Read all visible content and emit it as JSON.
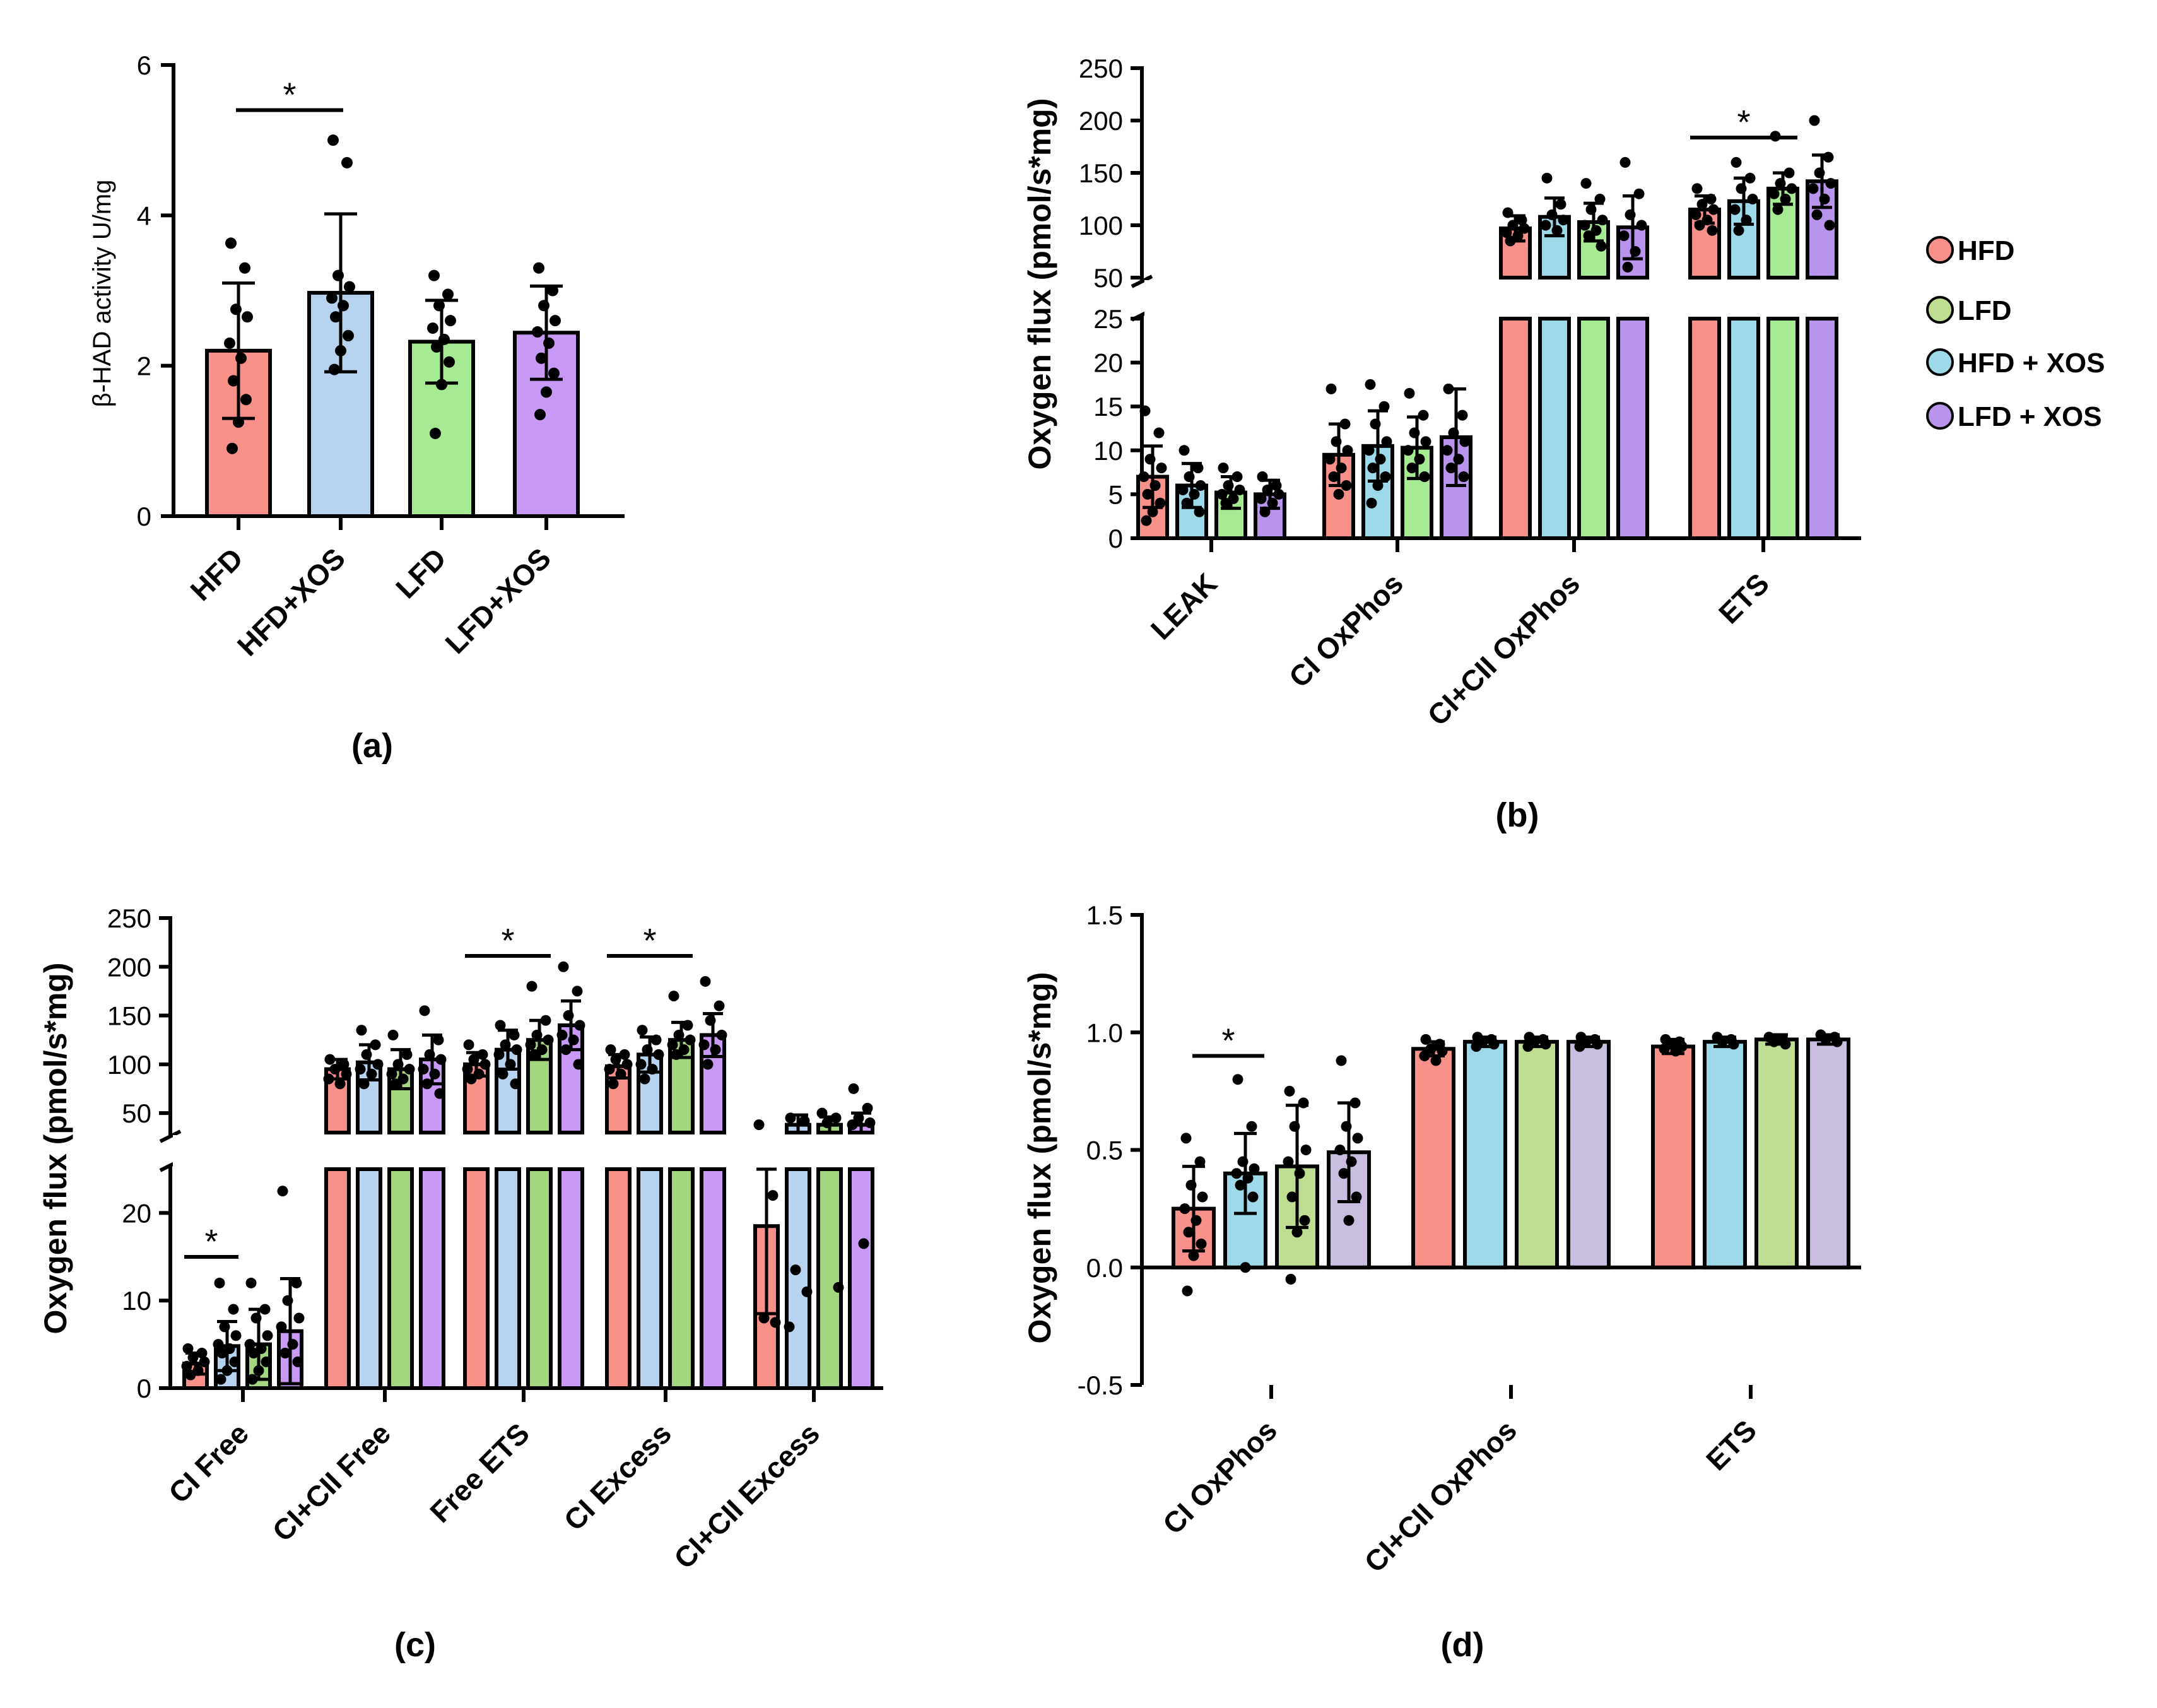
{
  "colors": {
    "hfd": "#F7918A",
    "lfd": "#A6EB93",
    "hfd_xos": "#B7D3EF",
    "lfd_xos": "#C89AF5",
    "hfd_xos_alt": "#9ED9EA",
    "lfd_xos_alt": "#B894EC",
    "lfd_d": "#BFDE94",
    "lfd_xos_d": "#C9BEDF",
    "green_c": "#A3D67F"
  },
  "legend": {
    "items": [
      {
        "label": "HFD",
        "color": "#F7918A"
      },
      {
        "label": "LFD",
        "color": "#BFDE94"
      },
      {
        "label": "HFD + XOS",
        "color": "#9ED9EA"
      },
      {
        "label": "LFD + XOS",
        "color": "#B894EC"
      }
    ]
  },
  "chart_data": [
    {
      "panel": "(a)",
      "type": "bar",
      "ylabel": "β-HAD activity U/mg",
      "ylim": [
        0,
        6
      ],
      "yticks": [
        "0",
        "2",
        "4",
        "6"
      ],
      "categories": [
        "HFD",
        "HFD+XOS",
        "LFD",
        "LFD+XOS"
      ],
      "values": [
        2.2,
        2.97,
        2.32,
        2.44
      ],
      "errors": [
        0.9,
        1.05,
        0.55,
        0.62
      ],
      "points": [
        [
          3.63,
          3.3,
          2.75,
          2.65,
          2.3,
          2.1,
          1.8,
          1.55,
          1.25,
          0.9
        ],
        [
          5.0,
          4.7,
          3.2,
          3.05,
          2.9,
          2.8,
          2.65,
          2.4,
          2.2,
          1.95
        ],
        [
          3.2,
          2.95,
          2.8,
          2.6,
          2.5,
          2.35,
          2.25,
          2.05,
          1.75,
          1.1
        ],
        [
          3.3,
          3.0,
          2.8,
          2.6,
          2.45,
          2.3,
          2.1,
          1.9,
          1.65,
          1.35
        ]
      ],
      "significance": [
        {
          "from": 0,
          "to": 1,
          "y": 5.4,
          "label": "*"
        }
      ]
    },
    {
      "panel": "(b)",
      "type": "bar",
      "ylabel": "Oxygen flux (pmol/s*mg)",
      "lower_ylim": [
        0,
        25
      ],
      "upper_ylim": [
        50,
        250
      ],
      "lower_yticks": [
        "0",
        "5",
        "10",
        "15",
        "20",
        "25"
      ],
      "upper_yticks": [
        "50",
        "100",
        "150",
        "200",
        "250"
      ],
      "categories": [
        "LEAK",
        "CI OxPhos",
        "CI+CII OxPhos",
        "ETS"
      ],
      "series": [
        {
          "name": "HFD",
          "values": [
            7.0,
            9.5,
            97,
            115
          ],
          "errors": [
            3.5,
            3.5,
            12,
            13
          ],
          "points": [
            [
              14.5,
              12,
              9,
              8,
              7,
              6,
              5,
              4,
              3,
              2
            ],
            [
              17,
              13,
              11,
              10,
              9,
              8,
              7,
              6,
              5
            ],
            [
              112,
              105,
              100,
              97,
              93,
              90,
              85
            ],
            [
              135,
              125,
              120,
              115,
              110,
              105,
              100,
              95
            ]
          ]
        },
        {
          "name": "HFD + XOS",
          "values": [
            6.0,
            10.5,
            108,
            123
          ],
          "errors": [
            2.5,
            4.0,
            18,
            22
          ],
          "points": [
            [
              10,
              8,
              7,
              6,
              5.5,
              5,
              4,
              3
            ],
            [
              17.5,
              15,
              13,
              11,
              10,
              9,
              8,
              7,
              6,
              4
            ],
            [
              145,
              120,
              110,
              105,
              100,
              95
            ],
            [
              160,
              145,
              135,
              125,
              115,
              105,
              95
            ]
          ]
        },
        {
          "name": "LFD",
          "values": [
            5.2,
            10.3,
            103,
            135
          ],
          "errors": [
            1.8,
            3.5,
            18,
            15
          ],
          "points": [
            [
              8,
              7,
              6,
              5.5,
              5,
              4.5,
              4
            ],
            [
              16.5,
              14,
              12,
              11,
              10,
              9,
              8,
              7
            ],
            [
              140,
              125,
              115,
              105,
              100,
              95,
              90,
              80
            ],
            [
              185,
              150,
              140,
              135,
              130,
              125,
              115
            ]
          ]
        },
        {
          "name": "LFD + XOS",
          "values": [
            5.0,
            11.5,
            98,
            142
          ],
          "errors": [
            1.6,
            5.5,
            30,
            25
          ],
          "points": [
            [
              7,
              6,
              5.5,
              5,
              4.5,
              4,
              3
            ],
            [
              17,
              14,
              12,
              11,
              10,
              9,
              8,
              7
            ],
            [
              160,
              130,
              110,
              100,
              90,
              75,
              60
            ],
            [
              200,
              165,
              150,
              140,
              135,
              125,
              110,
              100
            ]
          ]
        }
      ],
      "significance": [
        {
          "category": "ETS",
          "from": 0,
          "to": 2,
          "label": "*"
        }
      ]
    },
    {
      "panel": "(c)",
      "type": "bar",
      "ylabel": "Oxygen flux (pmol/s*mg)",
      "lower_ylim": [
        0,
        25
      ],
      "upper_ylim": [
        30,
        250
      ],
      "lower_yticks": [
        "0",
        "10",
        "20"
      ],
      "upper_yticks": [
        "50",
        "100",
        "150",
        "200",
        "250"
      ],
      "categories": [
        "CI Free",
        "CI+CII Free",
        "Free ETS",
        "CI Excess",
        "CI+CII Excess"
      ],
      "series": [
        {
          "name": "HFD",
          "values": [
            2.8,
            95,
            100,
            98,
            18.5
          ],
          "errors": [
            1.2,
            10,
            12,
            12,
            10
          ],
          "points": [
            [
              4.5,
              4,
              3.5,
              3,
              2.5,
              2,
              1.5
            ],
            [
              105,
              100,
              95,
              90,
              85,
              80
            ],
            [
              120,
              110,
              105,
              100,
              95,
              90,
              85
            ],
            [
              115,
              110,
              105,
              100,
              95,
              90,
              80
            ],
            [
              38,
              22,
              8,
              7.5
            ]
          ]
        },
        {
          "name": "HFD + XOS",
          "values": [
            4.8,
            102,
            115,
            110,
            38
          ],
          "errors": [
            2.8,
            18,
            20,
            18,
            10
          ],
          "points": [
            [
              12,
              9,
              7,
              6,
              5,
              4.5,
              4,
              3,
              2,
              1
            ],
            [
              135,
              120,
              110,
              100,
              95,
              90,
              80
            ],
            [
              140,
              130,
              120,
              115,
              110,
              100,
              90,
              80
            ],
            [
              135,
              125,
              115,
              110,
              100,
              95,
              85
            ],
            [
              45,
              42,
              13.5,
              11,
              7
            ]
          ]
        },
        {
          "name": "LFD",
          "values": [
            5.0,
            95,
            125,
            125,
            38
          ],
          "errors": [
            4.0,
            20,
            20,
            18,
            8
          ],
          "points": [
            [
              12,
              9,
              8,
              6,
              5,
              4.5,
              4,
              3,
              2,
              1
            ],
            [
              130,
              110,
              100,
              95,
              90,
              85,
              80
            ],
            [
              180,
              145,
              130,
              125,
              120,
              115,
              110
            ],
            [
              170,
              140,
              130,
              125,
              120,
              115,
              110
            ],
            [
              50,
              45,
              40,
              11.5
            ]
          ]
        },
        {
          "name": "LFD + XOS",
          "values": [
            6.5,
            105,
            140,
            130,
            38
          ],
          "errors": [
            6.0,
            25,
            25,
            22,
            12
          ],
          "points": [
            [
              22.5,
              12,
              10,
              8,
              7,
              5,
              4,
              3
            ],
            [
              155,
              125,
              110,
              105,
              95,
              90,
              80,
              70
            ],
            [
              200,
              175,
              150,
              140,
              130,
              125,
              115,
              100
            ],
            [
              185,
              160,
              145,
              130,
              120,
              115,
              100
            ],
            [
              75,
              55,
              45,
              40,
              38,
              16.5
            ]
          ]
        }
      ],
      "significance": [
        {
          "category": "CI Free",
          "from": 0,
          "to": 1,
          "label": "*"
        },
        {
          "category": "Free ETS",
          "from": 0,
          "to": 2,
          "label": "*"
        },
        {
          "category": "CI Excess",
          "from": 0,
          "to": 2,
          "label": "*"
        }
      ]
    },
    {
      "panel": "(d)",
      "type": "bar",
      "ylabel": "Oxygen flux (pmol/s*mg)",
      "ylim": [
        -0.5,
        1.5
      ],
      "yticks": [
        "-0.5",
        "0.0",
        "0.5",
        "1.0",
        "1.5"
      ],
      "categories": [
        "CI OxPhos",
        "CI+CII OxPhos",
        "ETS"
      ],
      "series": [
        {
          "name": "HFD",
          "values": [
            0.25,
            0.93,
            0.94
          ],
          "errors": [
            0.18,
            0.03,
            0.03
          ],
          "points": [
            [
              0.55,
              0.45,
              0.35,
              0.3,
              0.25,
              0.2,
              0.15,
              0.1,
              0.05,
              -0.1
            ],
            [
              0.97,
              0.95,
              0.93,
              0.92,
              0.9,
              0.88
            ],
            [
              0.97,
              0.96,
              0.95,
              0.94,
              0.93,
              0.92
            ]
          ]
        },
        {
          "name": "HFD + XOS",
          "values": [
            0.4,
            0.96,
            0.96
          ],
          "errors": [
            0.17,
            0.02,
            0.02
          ],
          "points": [
            [
              0.8,
              0.6,
              0.45,
              0.42,
              0.4,
              0.38,
              0.35,
              0.3,
              0.0
            ],
            [
              0.98,
              0.97,
              0.96,
              0.95,
              0.94
            ],
            [
              0.98,
              0.97,
              0.96,
              0.95
            ]
          ]
        },
        {
          "name": "LFD",
          "values": [
            0.43,
            0.96,
            0.97
          ],
          "errors": [
            0.26,
            0.02,
            0.02
          ],
          "points": [
            [
              0.75,
              0.7,
              0.6,
              0.5,
              0.45,
              0.4,
              0.3,
              0.2,
              0.15,
              -0.05
            ],
            [
              0.98,
              0.97,
              0.96,
              0.95,
              0.94
            ],
            [
              0.98,
              0.97,
              0.96,
              0.95
            ]
          ]
        },
        {
          "name": "LFD + XOS",
          "values": [
            0.49,
            0.96,
            0.97
          ],
          "errors": [
            0.21,
            0.02,
            0.02
          ],
          "points": [
            [
              0.88,
              0.7,
              0.6,
              0.55,
              0.5,
              0.45,
              0.4,
              0.3,
              0.2
            ],
            [
              0.98,
              0.97,
              0.96,
              0.95,
              0.94
            ],
            [
              0.99,
              0.98,
              0.97,
              0.96
            ]
          ]
        }
      ],
      "significance": [
        {
          "category": "CI OxPhos",
          "from": 0,
          "to": 1,
          "label": "*"
        }
      ]
    }
  ]
}
